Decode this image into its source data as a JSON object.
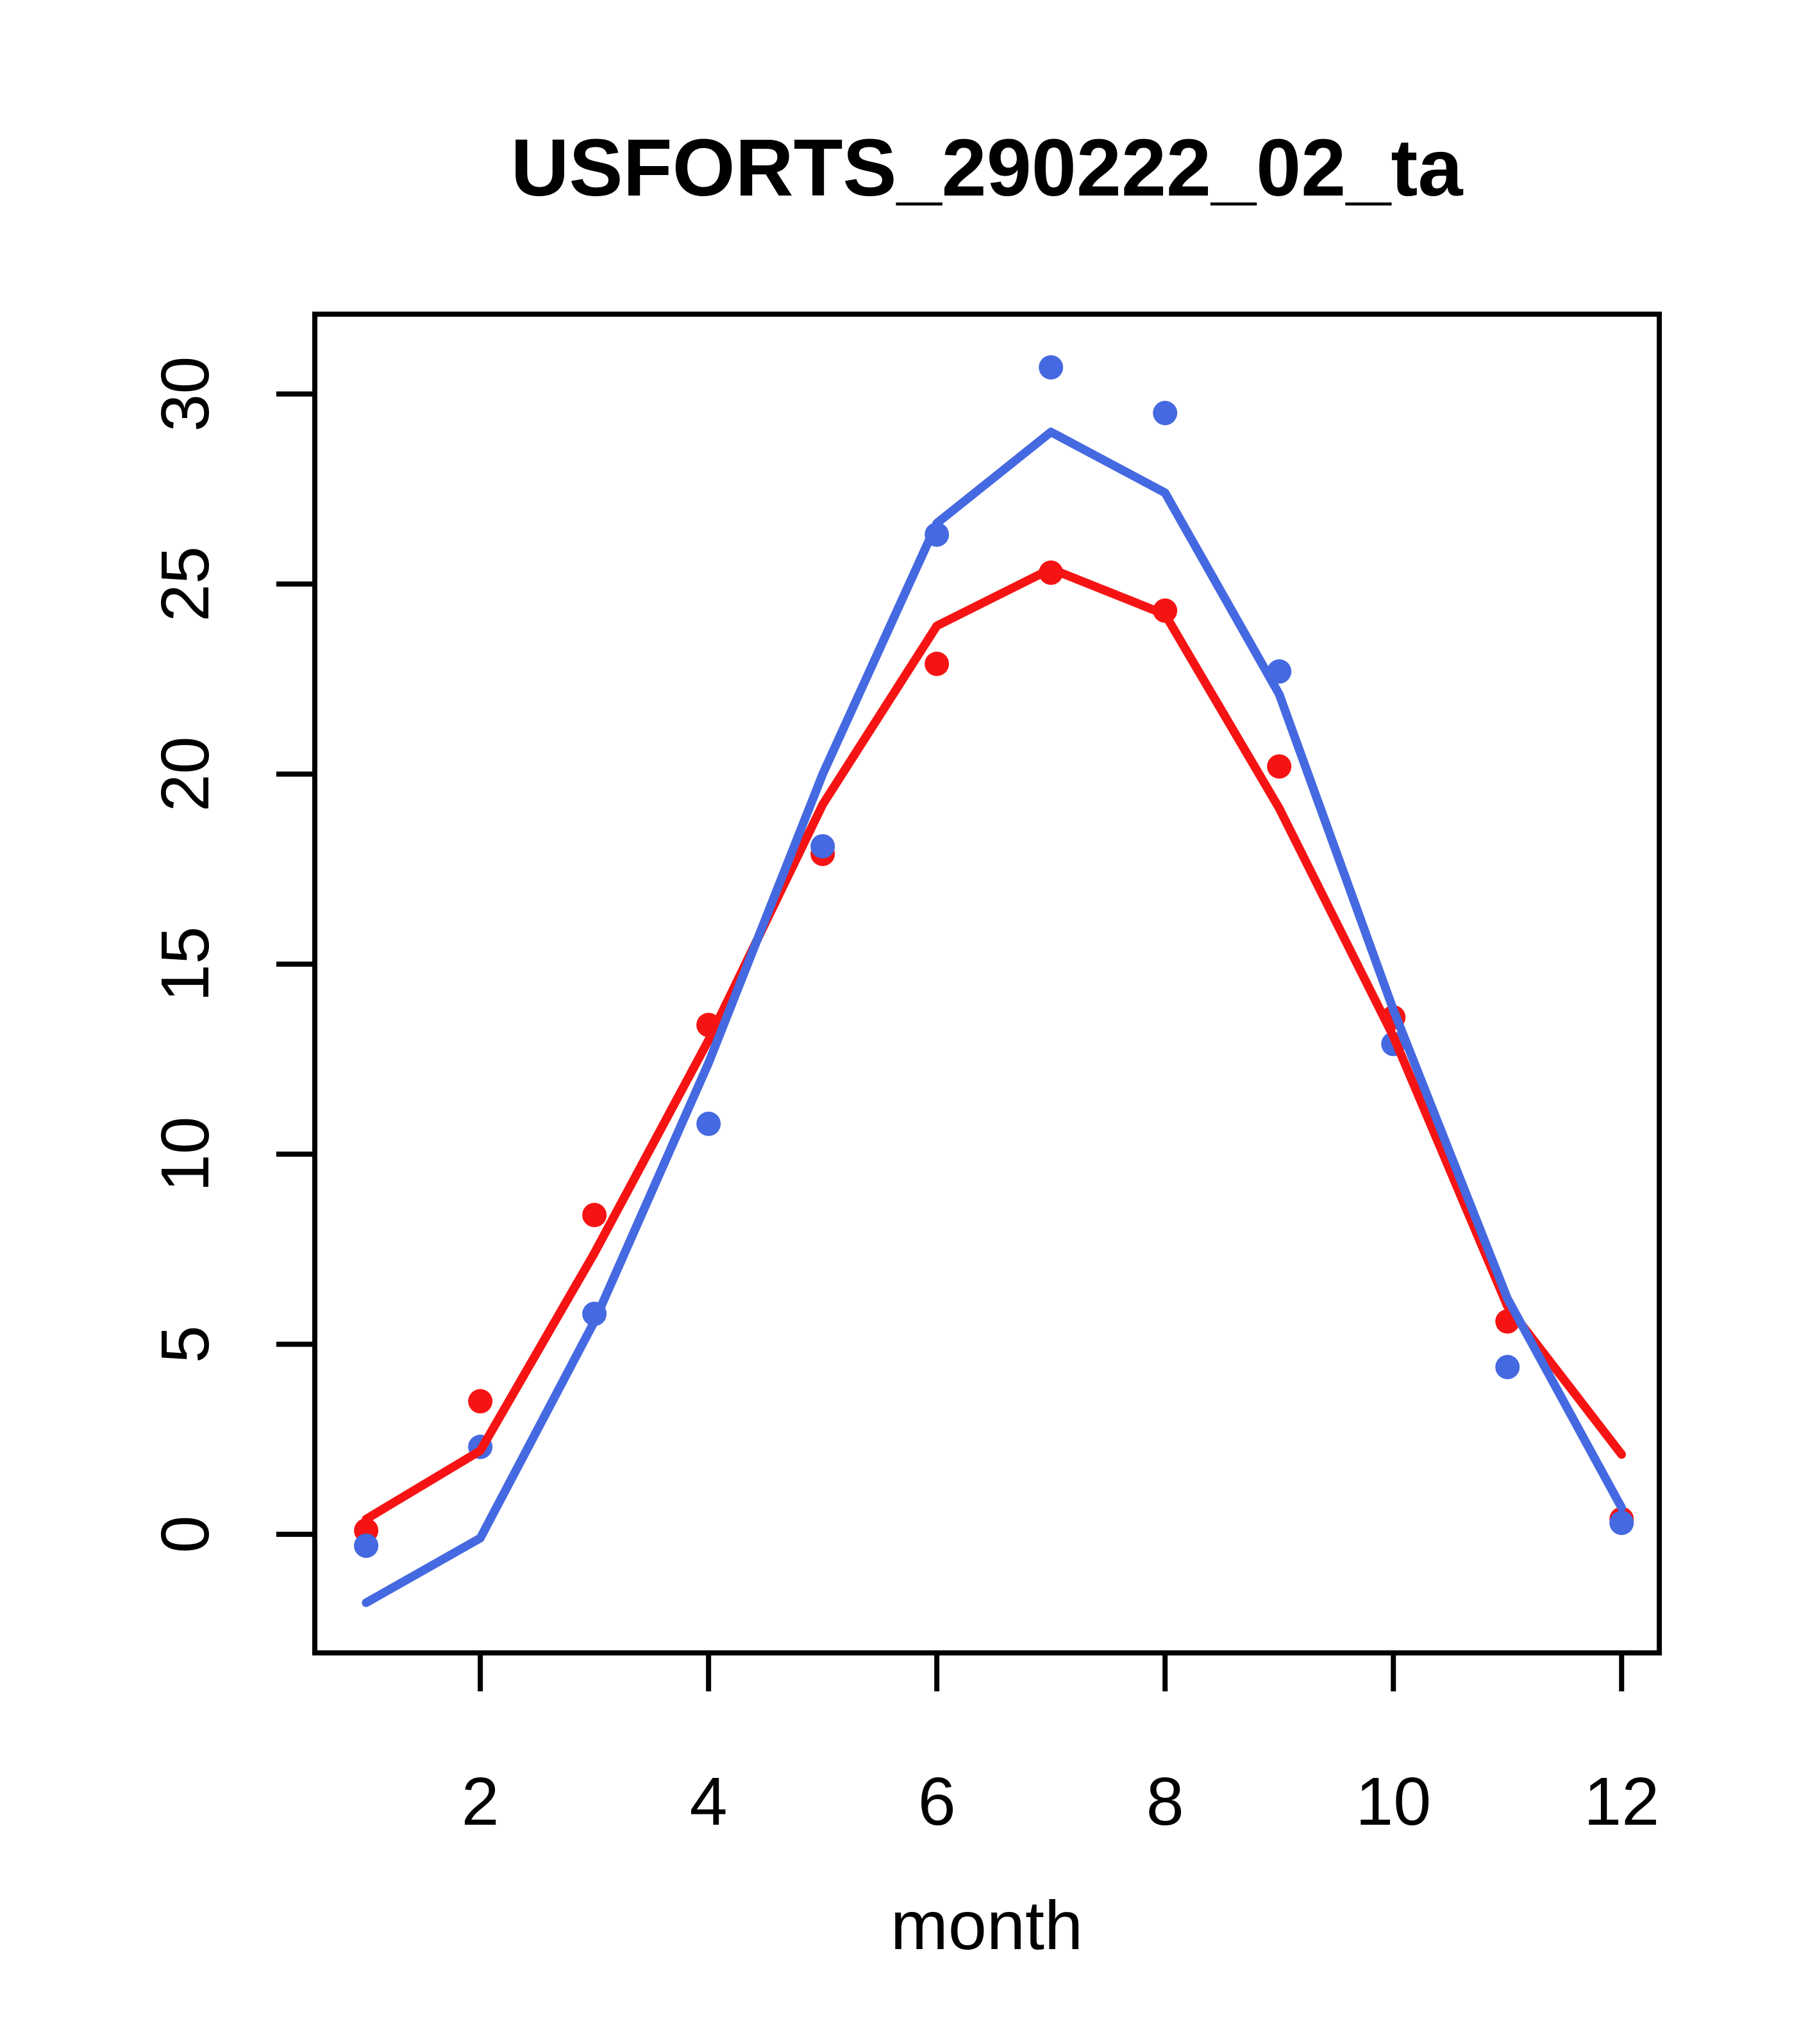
{
  "title": {
    "text": "USFORTS_290222_02_ta"
  },
  "chart_data": {
    "type": "scatter",
    "title": "USFORTS_290222_02_ta",
    "xlabel": "month",
    "ylabel": "",
    "x": [
      1,
      2,
      3,
      4,
      5,
      6,
      7,
      8,
      9,
      10,
      11,
      12
    ],
    "x_ticks": [
      2,
      4,
      6,
      8,
      10,
      12
    ],
    "y_ticks": [
      0,
      5,
      10,
      15,
      20,
      25,
      30
    ],
    "xlim": [
      0.55,
      12.33
    ],
    "ylim": [
      -3.12,
      32.1
    ],
    "grid": false,
    "legend_position": "none",
    "colors": {
      "red": "#f51413",
      "blue": "#4569e0",
      "axis": "#000000",
      "background": "#ffffff"
    },
    "series": [
      {
        "name": "red-observed",
        "kind": "points",
        "color_key": "red",
        "values": [
          0.1,
          3.5,
          8.4,
          13.4,
          17.9,
          22.9,
          25.3,
          24.3,
          20.2,
          13.6,
          5.6,
          0.4
        ]
      },
      {
        "name": "blue-observed",
        "kind": "points",
        "color_key": "blue",
        "values": [
          -0.3,
          2.3,
          5.8,
          10.8,
          18.1,
          26.3,
          30.7,
          29.5,
          22.7,
          12.9,
          4.4,
          0.3
        ]
      },
      {
        "name": "red-fitted-line",
        "kind": "line",
        "color_key": "red",
        "values": [
          0.4,
          2.2,
          7.4,
          13.0,
          19.2,
          23.9,
          25.4,
          24.2,
          19.1,
          13.1,
          6.0,
          2.1
        ]
      },
      {
        "name": "blue-fitted-line",
        "kind": "line",
        "color_key": "blue",
        "values": [
          -1.8,
          -0.1,
          5.6,
          12.4,
          20.0,
          26.6,
          29.0,
          27.4,
          22.1,
          13.8,
          6.2,
          0.7
        ]
      }
    ]
  }
}
